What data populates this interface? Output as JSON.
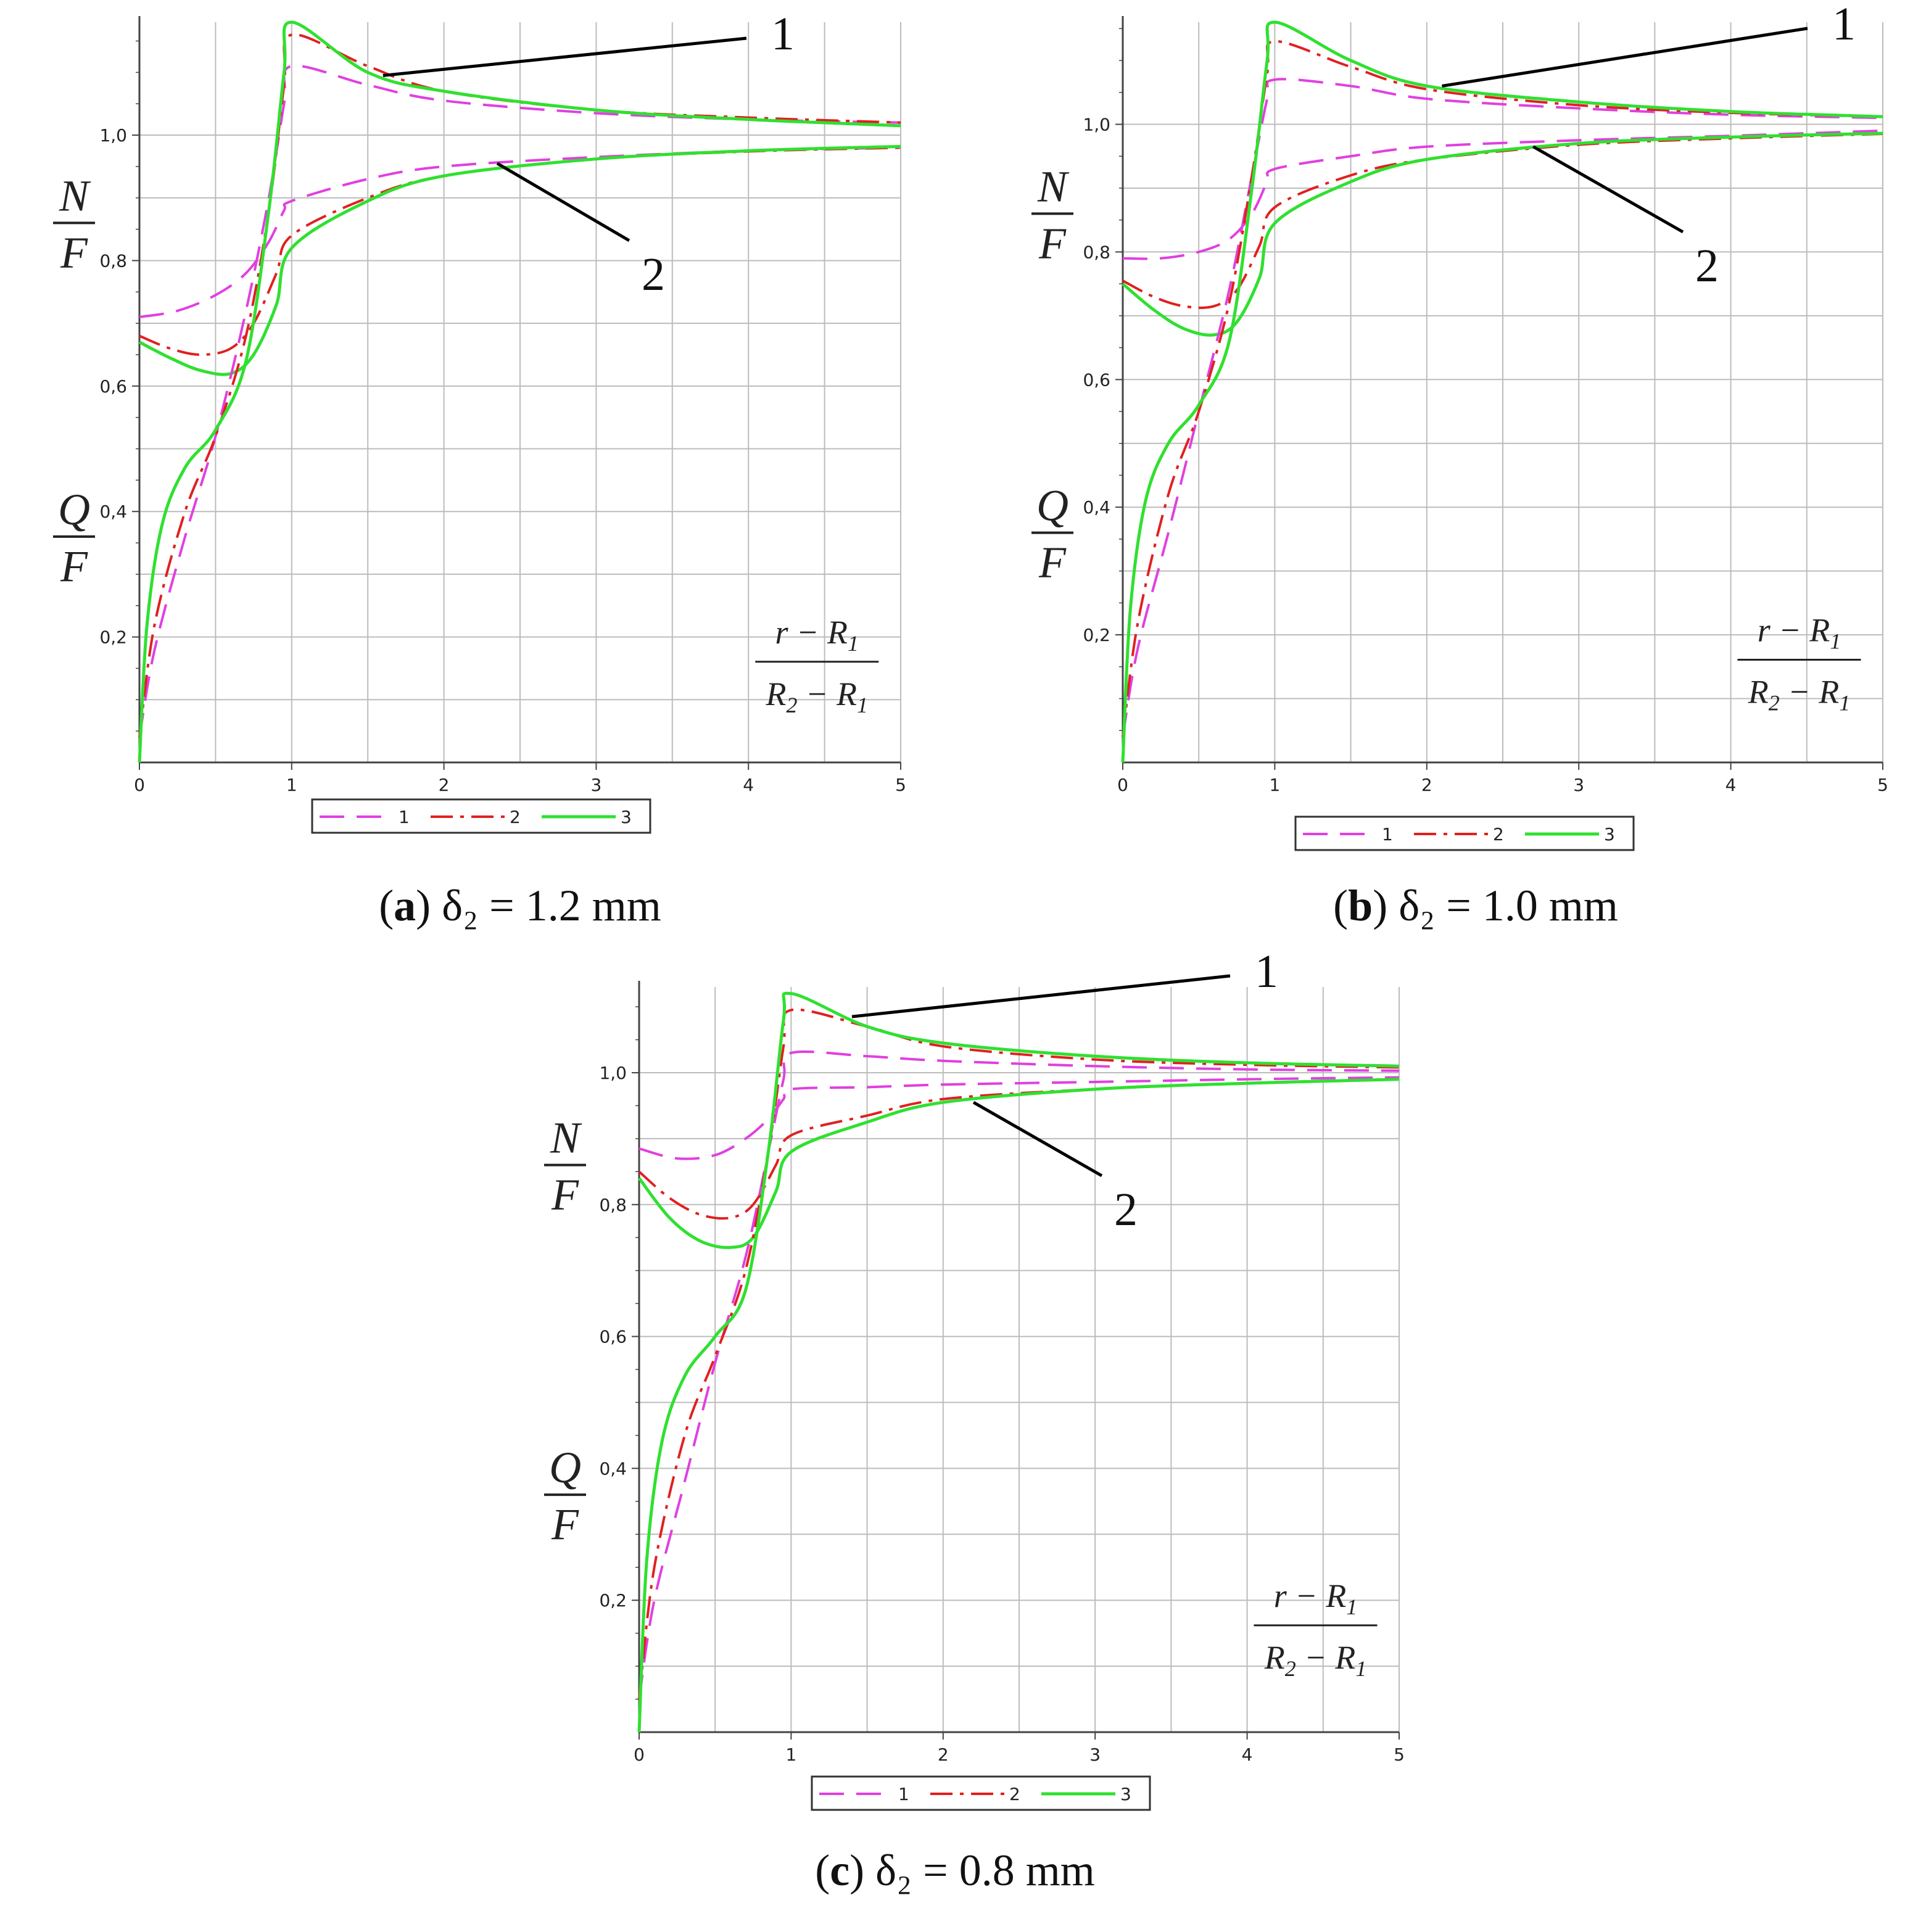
{
  "colors": {
    "series1": "#e040e0",
    "series2": "#e02020",
    "series3": "#30e030",
    "grid": "#bcbcbc",
    "axis": "#444444"
  },
  "chart_data": [
    {
      "type": "line",
      "caption_letter": "a",
      "caption_rest": "δ₂ = 1.2  mm",
      "xlabel_num": "r − R",
      "xlabel_num_sub": "1",
      "xlabel_den_a": "R",
      "xlabel_den_a_sub": "2",
      "xlabel_den_b": " − R",
      "xlabel_den_b_sub": "1",
      "ylabel_upper_num": "N",
      "ylabel_upper_den": "F",
      "ylabel_lower_num": "Q",
      "ylabel_lower_den": "F",
      "xlim": [
        0,
        5
      ],
      "ylim": [
        0,
        1.18
      ],
      "xticks": [
        "0",
        "1",
        "2",
        "3",
        "4",
        "5"
      ],
      "yticks": [
        {
          "v": 0.2,
          "label": "0,2"
        },
        {
          "v": 0.4,
          "label": "0,4"
        },
        {
          "v": 0.6,
          "label": "0,6"
        },
        {
          "v": 0.8,
          "label": "0,8"
        },
        {
          "v": 1.0,
          "label": "1,0"
        }
      ],
      "grid": true,
      "legend": [
        "1",
        "2",
        "3"
      ],
      "callouts": [
        "1",
        "2"
      ],
      "callout_targets": [
        {
          "x": 1.6,
          "y": 1.095
        },
        {
          "x": 2.35,
          "y": 0.955
        }
      ],
      "series": [
        {
          "name": "1",
          "curve": "N",
          "x": [
            0,
            0.25,
            0.5,
            0.7,
            0.85,
            0.95,
            1,
            1.5,
            2,
            3,
            4,
            5
          ],
          "y": [
            0.71,
            0.72,
            0.745,
            0.78,
            0.83,
            0.88,
            0.895,
            0.93,
            0.95,
            0.965,
            0.975,
            0.98
          ]
        },
        {
          "name": "2",
          "curve": "N",
          "x": [
            0,
            0.2,
            0.4,
            0.6,
            0.75,
            0.9,
            1,
            1.5,
            2,
            3,
            4,
            5
          ],
          "y": [
            0.68,
            0.66,
            0.65,
            0.66,
            0.7,
            0.78,
            0.84,
            0.9,
            0.935,
            0.962,
            0.974,
            0.98
          ]
        },
        {
          "name": "3",
          "curve": "N",
          "x": [
            0,
            0.2,
            0.4,
            0.6,
            0.75,
            0.9,
            1,
            1.5,
            2,
            3,
            4,
            5
          ],
          "y": [
            0.67,
            0.645,
            0.625,
            0.62,
            0.65,
            0.73,
            0.82,
            0.895,
            0.935,
            0.962,
            0.975,
            0.982
          ]
        },
        {
          "name": "1",
          "curve": "Q",
          "x": [
            0,
            0.1,
            0.3,
            0.5,
            0.7,
            0.85,
            0.95,
            1,
            1.5,
            2,
            3,
            4,
            5
          ],
          "y": [
            0.04,
            0.18,
            0.36,
            0.52,
            0.72,
            0.9,
            1.05,
            1.11,
            1.08,
            1.055,
            1.035,
            1.025,
            1.02
          ]
        },
        {
          "name": "2",
          "curve": "Q",
          "x": [
            0,
            0.1,
            0.3,
            0.5,
            0.7,
            0.85,
            0.95,
            1,
            1.5,
            2,
            3,
            4,
            5
          ],
          "y": [
            0.04,
            0.22,
            0.4,
            0.52,
            0.68,
            0.88,
            1.08,
            1.16,
            1.11,
            1.07,
            1.04,
            1.028,
            1.02
          ]
        },
        {
          "name": "3",
          "curve": "Q",
          "x": [
            0,
            0.05,
            0.15,
            0.3,
            0.5,
            0.7,
            0.85,
            0.95,
            1,
            1.5,
            2,
            3,
            4,
            5
          ],
          "y": [
            0.0,
            0.22,
            0.38,
            0.47,
            0.53,
            0.64,
            0.88,
            1.1,
            1.18,
            1.1,
            1.07,
            1.04,
            1.025,
            1.015
          ]
        }
      ]
    },
    {
      "type": "line",
      "caption_letter": "b",
      "caption_rest": "δ₂ = 1.0  mm",
      "xlabel_num": "r − R",
      "xlabel_num_sub": "1",
      "xlabel_den_a": "R",
      "xlabel_den_a_sub": "2",
      "xlabel_den_b": " − R",
      "xlabel_den_b_sub": "1",
      "ylabel_upper_num": "N",
      "ylabel_upper_den": "F",
      "ylabel_lower_num": "Q",
      "ylabel_lower_den": "F",
      "xlim": [
        0,
        5
      ],
      "ylim": [
        0,
        1.16
      ],
      "xticks": [
        "0",
        "1",
        "2",
        "3",
        "4",
        "5"
      ],
      "yticks": [
        {
          "v": 0.2,
          "label": "0,2"
        },
        {
          "v": 0.4,
          "label": "0,4"
        },
        {
          "v": 0.6,
          "label": "0,6"
        },
        {
          "v": 0.8,
          "label": "0,8"
        },
        {
          "v": 1.0,
          "label": "1,0"
        }
      ],
      "grid": true,
      "legend": [
        "1",
        "2",
        "3"
      ],
      "callouts": [
        "1",
        "2"
      ],
      "callout_targets": [
        {
          "x": 2.1,
          "y": 1.06
        },
        {
          "x": 2.7,
          "y": 0.965
        }
      ],
      "series": [
        {
          "name": "1",
          "curve": "N",
          "x": [
            0,
            0.25,
            0.5,
            0.7,
            0.85,
            0.95,
            1,
            1.5,
            2,
            3,
            4,
            5
          ],
          "y": [
            0.79,
            0.79,
            0.8,
            0.82,
            0.86,
            0.91,
            0.93,
            0.95,
            0.965,
            0.975,
            0.982,
            0.99
          ]
        },
        {
          "name": "2",
          "curve": "N",
          "x": [
            0,
            0.2,
            0.4,
            0.6,
            0.75,
            0.9,
            1,
            1.5,
            2,
            3,
            4,
            5
          ],
          "y": [
            0.755,
            0.73,
            0.715,
            0.715,
            0.74,
            0.81,
            0.87,
            0.92,
            0.945,
            0.968,
            0.978,
            0.985
          ]
        },
        {
          "name": "3",
          "curve": "N",
          "x": [
            0,
            0.2,
            0.4,
            0.6,
            0.75,
            0.9,
            1,
            1.5,
            2,
            3,
            4,
            5
          ],
          "y": [
            0.75,
            0.71,
            0.68,
            0.67,
            0.69,
            0.76,
            0.845,
            0.91,
            0.945,
            0.97,
            0.98,
            0.986
          ]
        },
        {
          "name": "1",
          "curve": "Q",
          "x": [
            0,
            0.1,
            0.3,
            0.5,
            0.7,
            0.85,
            0.95,
            1,
            1.5,
            2,
            3,
            4,
            5
          ],
          "y": [
            0.04,
            0.18,
            0.36,
            0.55,
            0.74,
            0.92,
            1.04,
            1.07,
            1.06,
            1.04,
            1.025,
            1.015,
            1.01
          ]
        },
        {
          "name": "2",
          "curve": "Q",
          "x": [
            0,
            0.1,
            0.3,
            0.5,
            0.7,
            0.85,
            0.95,
            1,
            1.5,
            2,
            3,
            4,
            5
          ],
          "y": [
            0.04,
            0.22,
            0.42,
            0.55,
            0.72,
            0.92,
            1.08,
            1.13,
            1.09,
            1.055,
            1.03,
            1.018,
            1.012
          ]
        },
        {
          "name": "3",
          "curve": "Q",
          "x": [
            0,
            0.05,
            0.15,
            0.3,
            0.5,
            0.7,
            0.85,
            0.95,
            1,
            1.5,
            2,
            3,
            4,
            5
          ],
          "y": [
            0.0,
            0.24,
            0.41,
            0.5,
            0.56,
            0.66,
            0.9,
            1.1,
            1.16,
            1.1,
            1.06,
            1.035,
            1.02,
            1.012
          ]
        }
      ]
    },
    {
      "type": "line",
      "caption_letter": "c",
      "caption_rest": "δ₂ = 0.8  mm",
      "xlabel_num": "r − R",
      "xlabel_num_sub": "1",
      "xlabel_den_a": "R",
      "xlabel_den_a_sub": "2",
      "xlabel_den_b": " − R",
      "xlabel_den_b_sub": "1",
      "ylabel_upper_num": "N",
      "ylabel_upper_den": "F",
      "ylabel_lower_num": "Q",
      "ylabel_lower_den": "F",
      "xlim": [
        0,
        5
      ],
      "ylim": [
        0,
        1.13
      ],
      "xticks": [
        "0",
        "1",
        "2",
        "3",
        "4",
        "5"
      ],
      "yticks": [
        {
          "v": 0.2,
          "label": "0,2"
        },
        {
          "v": 0.4,
          "label": "0,4"
        },
        {
          "v": 0.6,
          "label": "0,6"
        },
        {
          "v": 0.8,
          "label": "0,8"
        },
        {
          "v": 1.0,
          "label": "1,0"
        }
      ],
      "grid": true,
      "legend": [
        "1",
        "2",
        "3"
      ],
      "callouts": [
        "1",
        "2"
      ],
      "callout_targets": [
        {
          "x": 1.4,
          "y": 1.085
        },
        {
          "x": 2.2,
          "y": 0.955
        }
      ],
      "series": [
        {
          "name": "1",
          "curve": "N",
          "x": [
            0,
            0.25,
            0.5,
            0.7,
            0.85,
            0.95,
            1,
            1.5,
            2,
            3,
            4,
            5
          ],
          "y": [
            0.885,
            0.87,
            0.875,
            0.9,
            0.93,
            0.96,
            0.975,
            0.978,
            0.982,
            0.986,
            0.99,
            0.993
          ]
        },
        {
          "name": "2",
          "curve": "N",
          "x": [
            0,
            0.2,
            0.4,
            0.6,
            0.75,
            0.9,
            1,
            1.5,
            2,
            3,
            4,
            5
          ],
          "y": [
            0.85,
            0.81,
            0.785,
            0.78,
            0.8,
            0.86,
            0.905,
            0.935,
            0.96,
            0.975,
            0.984,
            0.99
          ]
        },
        {
          "name": "3",
          "curve": "N",
          "x": [
            0,
            0.2,
            0.4,
            0.6,
            0.75,
            0.9,
            1,
            1.5,
            2,
            3,
            4,
            5
          ],
          "y": [
            0.84,
            0.78,
            0.745,
            0.735,
            0.75,
            0.82,
            0.88,
            0.925,
            0.955,
            0.975,
            0.984,
            0.99
          ]
        },
        {
          "name": "1",
          "curve": "Q",
          "x": [
            0,
            0.1,
            0.3,
            0.5,
            0.7,
            0.85,
            0.95,
            1,
            1.5,
            2,
            3,
            4,
            5
          ],
          "y": [
            0.05,
            0.2,
            0.38,
            0.56,
            0.72,
            0.88,
            0.99,
            1.03,
            1.025,
            1.018,
            1.01,
            1.005,
            1.003
          ]
        },
        {
          "name": "2",
          "curve": "Q",
          "x": [
            0,
            0.1,
            0.3,
            0.5,
            0.7,
            0.85,
            0.95,
            1,
            1.5,
            2,
            3,
            4,
            5
          ],
          "y": [
            0.05,
            0.25,
            0.45,
            0.57,
            0.7,
            0.88,
            1.04,
            1.095,
            1.07,
            1.04,
            1.02,
            1.012,
            1.008
          ]
        },
        {
          "name": "3",
          "curve": "Q",
          "x": [
            0,
            0.05,
            0.15,
            0.3,
            0.5,
            0.7,
            0.85,
            0.95,
            1,
            1.5,
            2,
            3,
            4,
            5
          ],
          "y": [
            0.0,
            0.26,
            0.44,
            0.54,
            0.6,
            0.67,
            0.88,
            1.08,
            1.12,
            1.07,
            1.045,
            1.025,
            1.015,
            1.01
          ]
        }
      ]
    }
  ]
}
